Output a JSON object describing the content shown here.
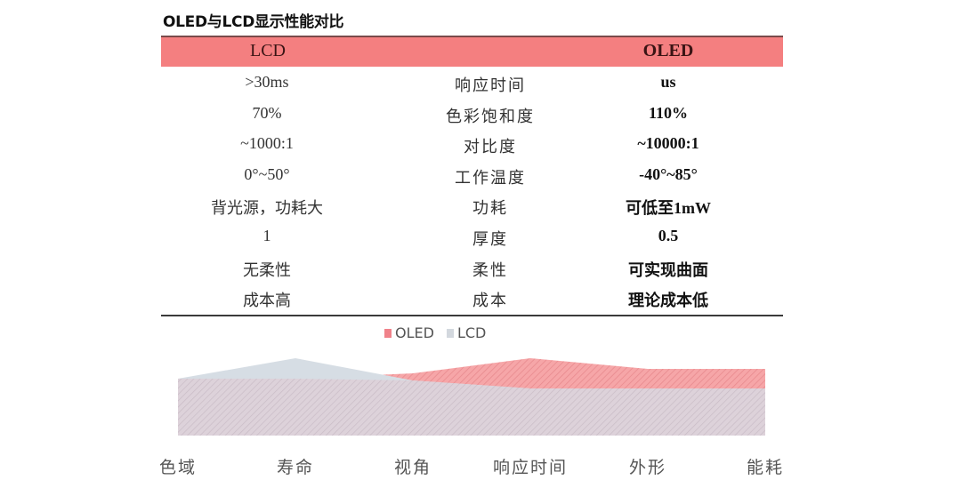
{
  "title": "OLED与LCD显示性能对比",
  "table": {
    "header": {
      "col1": "LCD",
      "col2": "",
      "col3": "OLED"
    },
    "header_color": "#f47f80",
    "rows": [
      {
        "lcd": ">30ms",
        "metric": "响应时间",
        "oled": "us"
      },
      {
        "lcd": "70%",
        "metric": "色彩饱和度",
        "oled": "110%"
      },
      {
        "lcd": "~1000:1",
        "metric": "对比度",
        "oled": "~10000:1"
      },
      {
        "lcd": "0°~50°",
        "metric": "工作温度",
        "oled": "-40°~85°"
      },
      {
        "lcd": "背光源，功耗大",
        "metric": "功耗",
        "oled": "可低至1mW"
      },
      {
        "lcd": "1",
        "metric": "厚度",
        "oled": "0.5"
      },
      {
        "lcd": "无柔性",
        "metric": "柔性",
        "oled": "可实现曲面"
      },
      {
        "lcd": "成本高",
        "metric": "成本",
        "oled": "理论成本低"
      }
    ]
  },
  "legend": [
    {
      "label": "OLED",
      "color": "#f0828a"
    },
    {
      "label": "LCD",
      "color": "#d3d8de"
    }
  ],
  "chart_data": {
    "type": "area",
    "title": "",
    "categories": [
      "色域",
      "寿命",
      "视角",
      "响应时间",
      "外形",
      "能耗"
    ],
    "series": [
      {
        "name": "OLED",
        "color": "#f0828a",
        "values": [
          64,
          64,
          70,
          87,
          75,
          75
        ]
      },
      {
        "name": "LCD",
        "color": "#d3d8de",
        "values": [
          64,
          87,
          62,
          53,
          53,
          53
        ]
      }
    ],
    "xlabel": "",
    "ylabel": "",
    "ylim": [
      0,
      90
    ],
    "grid": false,
    "legend_position": "top",
    "notes": "Decorative relative comparison; no y-axis values shown. Values are estimated relative heights."
  }
}
